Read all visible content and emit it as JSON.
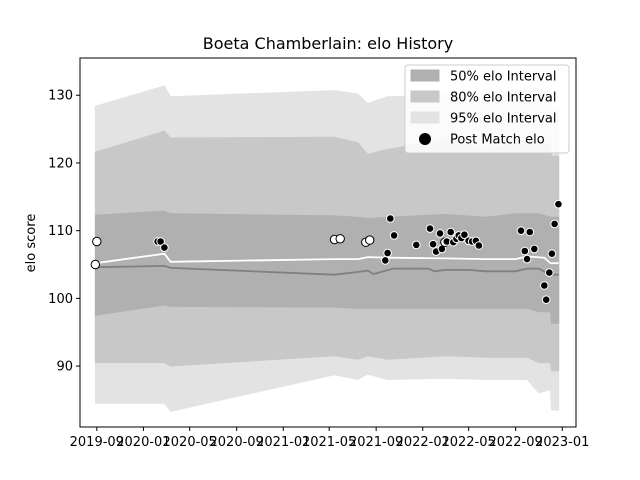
{
  "chart_data": {
    "type": "scatter",
    "title": "Boeta Chamberlain: elo History",
    "xlabel": "",
    "ylabel": "elo score",
    "xlim": [
      "2019-07-19",
      "2023-02-06"
    ],
    "ylim": [
      81,
      135.5
    ],
    "x_ticks": [
      "2019-09",
      "2020-01",
      "2020-05",
      "2020-09",
      "2021-01",
      "2021-05",
      "2021-09",
      "2022-01",
      "2022-05",
      "2022-09",
      "2023-01"
    ],
    "y_ticks": [
      90,
      100,
      110,
      120,
      130
    ],
    "grid": false,
    "legend_position": "top-right",
    "legend": [
      "50% elo Interval",
      "80% elo Interval",
      "95% elo Interval",
      "Post Match elo"
    ],
    "colors": {
      "band_50": "#b0b0b0",
      "band_80": "#c8c8c8",
      "band_95": "#e3e3e3",
      "median_line": "#808080",
      "mean_line": "#ffffff",
      "point_fill": "#000000",
      "point_edge": "#ffffff",
      "point_open_fill": "#ffffff",
      "point_open_edge": "#000000"
    },
    "series": [
      {
        "name": "95% elo Interval",
        "type": "band",
        "x": [
          "2019-08-28",
          "2020-02-25",
          "2020-03-12",
          "2021-05-15",
          "2021-07-15",
          "2021-08-10",
          "2021-10-01",
          "2022-03-01",
          "2022-06-15",
          "2022-08-30",
          "2022-10-01",
          "2022-11-01",
          "2022-12-01",
          "2022-12-04",
          "2022-12-23"
        ],
        "lower": [
          84.5,
          84.5,
          83.3,
          88.7,
          88.0,
          88.8,
          88.0,
          88.2,
          88.0,
          88.0,
          88.0,
          86.0,
          86.5,
          83.5,
          83.5
        ],
        "upper": [
          128.4,
          131.4,
          129.8,
          130.7,
          130.2,
          128.8,
          129.8,
          130.0,
          129.2,
          130.5,
          131.2,
          131.0,
          130.0,
          128.0,
          128.0
        ]
      },
      {
        "name": "80% elo Interval",
        "type": "band",
        "x": [
          "2019-08-28",
          "2020-02-25",
          "2020-03-12",
          "2021-05-15",
          "2021-07-15",
          "2021-08-10",
          "2021-10-01",
          "2022-03-01",
          "2022-06-15",
          "2022-08-30",
          "2022-10-01",
          "2022-11-01",
          "2022-12-01",
          "2022-12-04",
          "2022-12-23"
        ],
        "lower": [
          90.5,
          90.5,
          90.0,
          91.5,
          91.0,
          91.5,
          91.0,
          91.5,
          91.3,
          91.3,
          91.3,
          90.5,
          90.5,
          89.3,
          89.3
        ],
        "upper": [
          121.6,
          124.7,
          123.7,
          123.8,
          123.0,
          121.3,
          122.0,
          123.5,
          122.0,
          123.0,
          123.5,
          123.0,
          122.8,
          121.0,
          121.0
        ]
      },
      {
        "name": "50% elo Interval",
        "type": "band",
        "x": [
          "2019-08-28",
          "2020-02-25",
          "2020-03-12",
          "2021-05-15",
          "2021-07-15",
          "2021-08-10",
          "2021-10-01",
          "2022-03-01",
          "2022-06-15",
          "2022-08-30",
          "2022-10-01",
          "2022-11-01",
          "2022-12-01",
          "2022-12-04",
          "2022-12-23"
        ],
        "lower": [
          97.5,
          99.0,
          98.8,
          98.7,
          98.5,
          98.5,
          98.5,
          98.5,
          98.5,
          98.5,
          98.5,
          98.0,
          98.0,
          96.3,
          96.3
        ],
        "upper": [
          112.3,
          112.9,
          112.5,
          112.2,
          112.0,
          111.8,
          112.0,
          112.4,
          112.0,
          112.5,
          112.5,
          112.5,
          112.0,
          112.0,
          112.0
        ]
      },
      {
        "name": "median",
        "type": "line",
        "x": [
          "2019-08-28",
          "2020-02-25",
          "2020-03-12",
          "2021-05-15",
          "2021-07-15",
          "2021-08-10",
          "2021-08-25",
          "2021-10-15",
          "2022-01-15",
          "2022-02-01",
          "2022-03-01",
          "2022-05-01",
          "2022-06-15",
          "2022-09-01",
          "2022-10-01",
          "2022-11-01",
          "2022-12-01",
          "2022-12-23"
        ],
        "values": [
          104.6,
          104.8,
          104.5,
          103.5,
          103.9,
          104.1,
          103.6,
          104.4,
          104.4,
          104.0,
          104.2,
          104.2,
          104.0,
          104.0,
          104.4,
          104.4,
          103.5,
          103.5
        ]
      },
      {
        "name": "mean",
        "type": "line",
        "x": [
          "2019-08-28",
          "2020-02-25",
          "2020-03-12",
          "2021-05-15",
          "2021-07-15",
          "2021-08-10",
          "2021-10-01",
          "2022-03-01",
          "2022-06-15",
          "2022-09-01",
          "2022-10-01",
          "2022-11-15",
          "2022-12-01",
          "2022-12-23"
        ],
        "values": [
          105.2,
          106.6,
          105.4,
          105.8,
          105.8,
          106.1,
          106.0,
          105.9,
          105.8,
          105.8,
          106.2,
          106.0,
          105.2,
          105.2
        ]
      },
      {
        "name": "Post Match elo",
        "type": "scatter",
        "points": [
          {
            "x": "2019-08-28",
            "y": 105.0,
            "open": true
          },
          {
            "x": "2019-09-01",
            "y": 108.4,
            "open": true
          },
          {
            "x": "2020-02-07",
            "y": 108.4,
            "open": false
          },
          {
            "x": "2020-02-15",
            "y": 108.4,
            "open": false
          },
          {
            "x": "2020-02-25",
            "y": 107.5,
            "open": false
          },
          {
            "x": "2021-05-15",
            "y": 108.7,
            "open": true
          },
          {
            "x": "2021-05-30",
            "y": 108.8,
            "open": true
          },
          {
            "x": "2021-08-05",
            "y": 108.3,
            "open": true
          },
          {
            "x": "2021-08-15",
            "y": 108.6,
            "open": true
          },
          {
            "x": "2021-09-25",
            "y": 105.6,
            "open": false
          },
          {
            "x": "2021-10-01",
            "y": 106.7,
            "open": false
          },
          {
            "x": "2021-10-08",
            "y": 111.8,
            "open": false
          },
          {
            "x": "2021-10-18",
            "y": 109.3,
            "open": false
          },
          {
            "x": "2021-12-15",
            "y": 107.9,
            "open": false
          },
          {
            "x": "2022-01-20",
            "y": 110.3,
            "open": false
          },
          {
            "x": "2022-01-28",
            "y": 108.0,
            "open": false
          },
          {
            "x": "2022-02-05",
            "y": 106.9,
            "open": false
          },
          {
            "x": "2022-02-15",
            "y": 109.6,
            "open": false
          },
          {
            "x": "2022-02-20",
            "y": 107.3,
            "open": false
          },
          {
            "x": "2022-02-28",
            "y": 108.3,
            "open": true
          },
          {
            "x": "2022-03-05",
            "y": 108.4,
            "open": false
          },
          {
            "x": "2022-03-15",
            "y": 109.8,
            "open": false
          },
          {
            "x": "2022-03-22",
            "y": 108.3,
            "open": false
          },
          {
            "x": "2022-03-30",
            "y": 108.8,
            "open": false
          },
          {
            "x": "2022-04-05",
            "y": 109.3,
            "open": false
          },
          {
            "x": "2022-04-12",
            "y": 108.9,
            "open": false
          },
          {
            "x": "2022-04-20",
            "y": 109.4,
            "open": false
          },
          {
            "x": "2022-05-01",
            "y": 108.5,
            "open": false
          },
          {
            "x": "2022-05-10",
            "y": 108.4,
            "open": false
          },
          {
            "x": "2022-05-20",
            "y": 108.5,
            "open": false
          },
          {
            "x": "2022-05-28",
            "y": 107.8,
            "open": false
          },
          {
            "x": "2022-09-15",
            "y": 110.0,
            "open": false
          },
          {
            "x": "2022-09-25",
            "y": 107.0,
            "open": false
          },
          {
            "x": "2022-10-01",
            "y": 105.8,
            "open": false
          },
          {
            "x": "2022-10-08",
            "y": 109.8,
            "open": false
          },
          {
            "x": "2022-10-20",
            "y": 107.3,
            "open": false
          },
          {
            "x": "2022-11-15",
            "y": 101.9,
            "open": false
          },
          {
            "x": "2022-11-20",
            "y": 99.8,
            "open": false
          },
          {
            "x": "2022-11-28",
            "y": 103.8,
            "open": false
          },
          {
            "x": "2022-12-05",
            "y": 106.6,
            "open": false
          },
          {
            "x": "2022-12-12",
            "y": 111.0,
            "open": false
          },
          {
            "x": "2022-12-22",
            "y": 113.9,
            "open": false
          }
        ]
      }
    ]
  }
}
